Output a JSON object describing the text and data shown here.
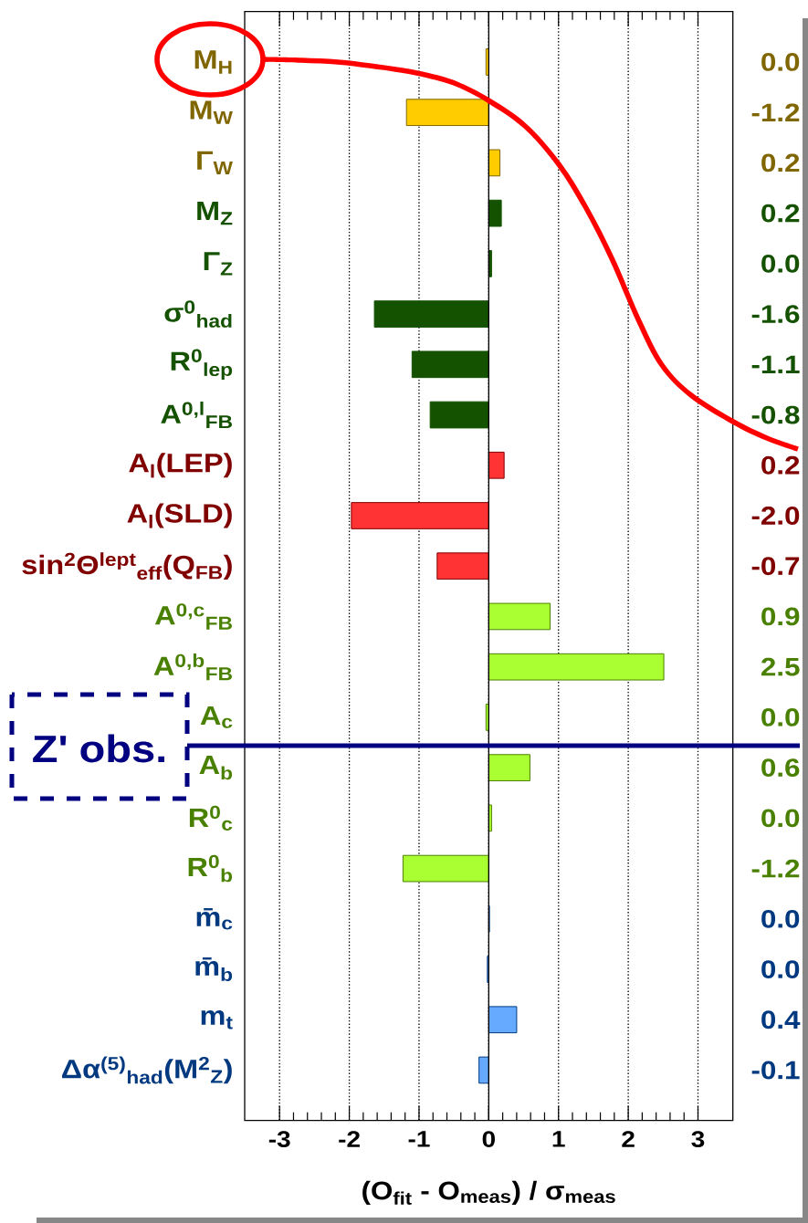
{
  "chart_data": {
    "type": "bar",
    "orientation": "horizontal",
    "categories": [
      "M$_{H}$",
      "M$_{W}$",
      "Γ$_{W}$",
      "M$_{Z}$",
      "Γ$_{Z}$",
      "σ$^{0}$$_{had}$",
      "R$^{0}$$_{lep}$",
      "A$^{0,l}$$_{FB}$",
      "A$_{l}$(LEP)",
      "A$_{l}$(SLD)",
      "sin$^{2}$Θ$^{lept}$$_{eff}$(Q$_{FB}$)",
      "A$^{0,c}$$_{FB}$",
      "A$^{0,b}$$_{FB}$",
      "A$_{c}$",
      "A$_{b}$",
      "R$^{0}$$_{c}$",
      "R$^{0}$$_{b}$",
      "m̄$_{c}$",
      "m̄$_{b}$",
      "m$_{t}$",
      "Δα$^{(5)}$$_{had}$(M$^{2}$$_{Z}$)"
    ],
    "values": [
      -0.04,
      -1.18,
      0.16,
      0.18,
      0.04,
      -1.64,
      -1.1,
      -0.84,
      0.22,
      -1.97,
      -0.74,
      0.88,
      2.51,
      -0.04,
      0.59,
      0.04,
      -1.23,
      0.01,
      -0.02,
      0.4,
      -0.14
    ],
    "value_labels": [
      "0.0",
      "-1.2",
      "0.2",
      "0.2",
      "0.0",
      "-1.6",
      "-1.1",
      "-0.8",
      "0.2",
      "-2.0",
      "-0.7",
      "0.9",
      "2.5",
      "0.0",
      "0.6",
      "0.0",
      "-1.2",
      "0.0",
      "0.0",
      "0.4",
      "-0.1"
    ],
    "colors": [
      "#ffcc00",
      "#ffcc00",
      "#ffcc00",
      "#145200",
      "#145200",
      "#145200",
      "#145200",
      "#145200",
      "#ff3333",
      "#ff3333",
      "#ff3333",
      "#aaff33",
      "#aaff33",
      "#aaff33",
      "#aaff33",
      "#aaff33",
      "#aaff33",
      "#66aaff",
      "#66aaff",
      "#66aaff",
      "#66aaff"
    ],
    "xlabel": "(O$_{fit}$ - O$_{meas}$) / σ$_{meas}$",
    "xlim": [
      -3.5,
      3.5
    ],
    "xticks": [
      -3,
      -2,
      -1,
      0,
      1,
      2,
      3
    ],
    "grid": "x",
    "ref_lines": [
      {
        "axis": "x",
        "value": 0,
        "color": "#000000",
        "line_style": "solid"
      }
    ],
    "annotations": [
      "Z' obs."
    ]
  }
}
